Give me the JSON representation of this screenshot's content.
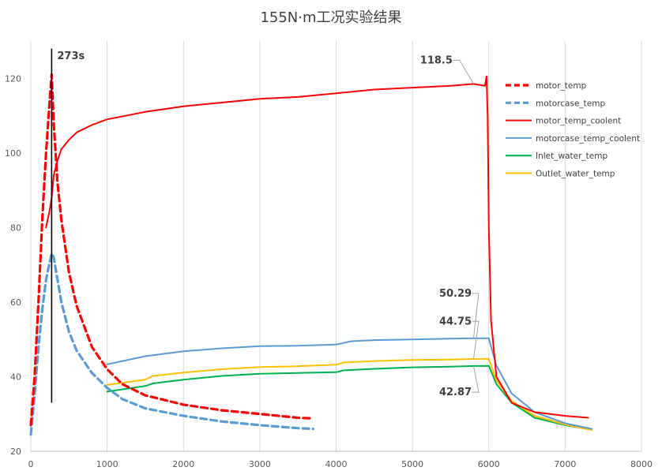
{
  "chart_data": {
    "type": "line",
    "title": "155N·m工况实验结果",
    "xlabel": "",
    "ylabel": "",
    "xlim": [
      0,
      8000
    ],
    "ylim": [
      20,
      130
    ],
    "xticks": [
      0,
      1000,
      2000,
      3000,
      4000,
      5000,
      6000,
      7000,
      8000
    ],
    "yticks": [
      20,
      40,
      60,
      80,
      100,
      120
    ],
    "grid": "vertical",
    "legend_position": "right",
    "series": [
      {
        "name": "motor_temp",
        "color": "#ff0000",
        "style": "dashed",
        "x": [
          0,
          50,
          100,
          150,
          200,
          250,
          273,
          300,
          350,
          400,
          500,
          600,
          800,
          1000,
          1200,
          1500,
          2000,
          2500,
          3000,
          3500,
          3700
        ],
        "y": [
          27,
          40,
          60,
          82,
          100,
          115,
          121,
          108,
          92,
          82,
          68,
          59,
          48,
          42,
          38,
          35,
          32.5,
          31,
          30,
          29,
          28.8
        ]
      },
      {
        "name": "motorcase_temp",
        "color": "#5b9bd5",
        "style": "dashed",
        "x": [
          0,
          50,
          100,
          150,
          200,
          250,
          273,
          300,
          350,
          400,
          500,
          600,
          800,
          1000,
          1200,
          1500,
          2000,
          2500,
          3000,
          3500,
          3700
        ],
        "y": [
          24.5,
          35,
          48,
          58,
          66,
          71,
          73,
          72,
          66,
          60,
          52,
          47,
          41,
          37,
          34,
          31.5,
          29.5,
          28,
          27,
          26.2,
          26
        ]
      },
      {
        "name": "motor_temp_coolent",
        "color": "#ff0000",
        "style": "solid",
        "x": [
          200,
          250,
          273,
          300,
          350,
          400,
          500,
          600,
          800,
          1000,
          1500,
          2000,
          2500,
          3000,
          3500,
          4000,
          4500,
          5000,
          5500,
          5800,
          5950,
          5970,
          5985,
          6000,
          6030,
          6100,
          6300,
          6600,
          7000,
          7300
        ],
        "y": [
          80,
          85,
          88,
          94,
          98,
          101,
          103.5,
          105.5,
          107.5,
          109,
          111,
          112.5,
          113.5,
          114.5,
          115,
          116,
          117,
          117.5,
          118,
          118.5,
          118,
          120.5,
          110,
          80,
          55,
          40,
          33,
          30.5,
          29.5,
          29
        ]
      },
      {
        "name": "motorcase_temp_coolent",
        "color": "#5b9bd5",
        "style": "solid",
        "x": [
          1000,
          1500,
          2000,
          2500,
          3000,
          3500,
          4000,
          4200,
          4500,
          5000,
          5500,
          5800,
          6000,
          6100,
          6300,
          6600,
          7000,
          7350
        ],
        "y": [
          43.3,
          45.5,
          46.8,
          47.6,
          48.2,
          48.3,
          48.6,
          49.5,
          49.8,
          50.0,
          50.2,
          50.29,
          50.3,
          43,
          35.5,
          30.5,
          27.5,
          26
        ]
      },
      {
        "name": "Inlet_water_temp",
        "color": "#00b050",
        "style": "solid",
        "x": [
          1000,
          1500,
          1600,
          2000,
          2500,
          3000,
          3500,
          4000,
          4100,
          4500,
          5000,
          5500,
          5800,
          6000,
          6100,
          6300,
          6600,
          7000,
          7350
        ],
        "y": [
          36,
          37.5,
          38.2,
          39.2,
          40.2,
          40.8,
          41,
          41.2,
          41.7,
          42.1,
          42.5,
          42.7,
          42.87,
          42.9,
          38,
          33,
          29,
          27,
          25.8
        ]
      },
      {
        "name": "Outlet_water_temp",
        "color": "#ffc000",
        "style": "solid",
        "x": [
          1000,
          1500,
          1600,
          2000,
          2500,
          3000,
          3500,
          4000,
          4100,
          4500,
          5000,
          5500,
          5800,
          6000,
          6100,
          6300,
          6600,
          7000,
          7350
        ],
        "y": [
          37.8,
          39.2,
          40.2,
          41.1,
          42,
          42.6,
          42.8,
          43.2,
          43.8,
          44.2,
          44.5,
          44.6,
          44.75,
          44.8,
          39,
          33.5,
          29.5,
          27.2,
          25.7
        ]
      }
    ],
    "annotations": [
      {
        "text": "273s",
        "x": 273,
        "y": 126,
        "type": "vertical-line",
        "line_y": [
          33,
          128
        ]
      },
      {
        "text": "118.5",
        "x": 5800,
        "y": 118.5,
        "label_x": 5100,
        "label_y": 124
      },
      {
        "text": "50.29",
        "x": 5800,
        "y": 50.29,
        "label_x": 5350,
        "label_y": 61.5
      },
      {
        "text": "44.75",
        "x": 5800,
        "y": 44.75,
        "label_x": 5350,
        "label_y": 54
      },
      {
        "text": "42.87",
        "x": 5800,
        "y": 42.87,
        "label_x": 5350,
        "label_y": 35
      }
    ]
  }
}
